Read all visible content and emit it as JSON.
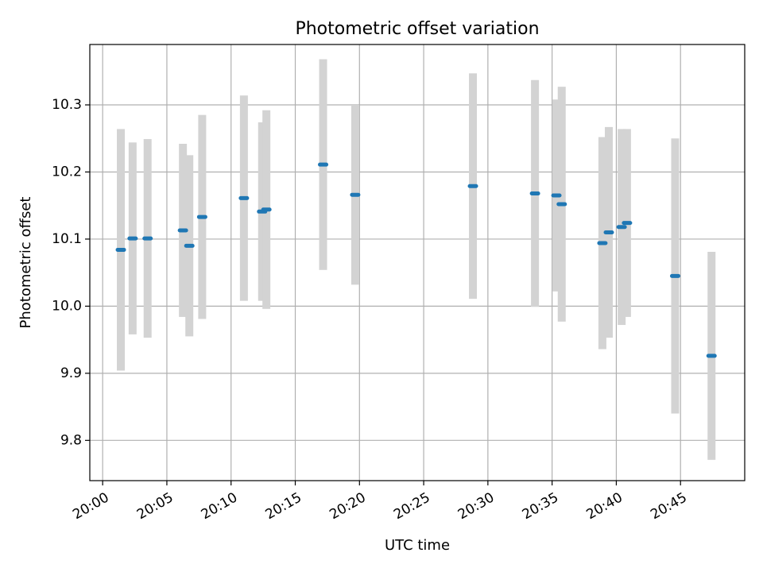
{
  "chart_data": {
    "type": "scatter",
    "title": "Photometric offset variation",
    "xlabel": "UTC time",
    "ylabel": "Photometric offset",
    "x_range_minutes": [
      -1,
      50
    ],
    "ylim": [
      9.74,
      10.39
    ],
    "x_ticks": [
      "20:00",
      "20:05",
      "20:10",
      "20:15",
      "20:20",
      "20:25",
      "20:30",
      "20:35",
      "20:40",
      "20:45"
    ],
    "y_ticks": [
      "9.8",
      "9.9",
      "10.0",
      "10.1",
      "10.2",
      "10.3"
    ],
    "grid": true,
    "colors": {
      "point": "#1f77b4",
      "errorbar": "#d3d3d3",
      "grid": "#b0b0b0"
    },
    "series": [
      {
        "points": [
          {
            "x": "20:01:25",
            "y": 10.084,
            "yerr": 0.18
          },
          {
            "x": "20:02:20",
            "y": 10.101,
            "yerr": 0.143
          },
          {
            "x": "20:03:30",
            "y": 10.101,
            "yerr": 0.148
          },
          {
            "x": "20:06:15",
            "y": 10.113,
            "yerr": 0.129
          },
          {
            "x": "20:06:45",
            "y": 10.09,
            "yerr": 0.135
          },
          {
            "x": "20:07:45",
            "y": 10.133,
            "yerr": 0.152
          },
          {
            "x": "20:11:00",
            "y": 10.161,
            "yerr": 0.153
          },
          {
            "x": "20:12:25",
            "y": 10.141,
            "yerr": 0.133
          },
          {
            "x": "20:12:45",
            "y": 10.144,
            "yerr": 0.148
          },
          {
            "x": "20:17:10",
            "y": 10.211,
            "yerr": 0.157
          },
          {
            "x": "20:19:40",
            "y": 10.166,
            "yerr": 0.134
          },
          {
            "x": "20:28:50",
            "y": 10.179,
            "yerr": 0.168
          },
          {
            "x": "20:33:40",
            "y": 10.168,
            "yerr": 0.169
          },
          {
            "x": "20:35:20",
            "y": 10.165,
            "yerr": 0.143
          },
          {
            "x": "20:35:45",
            "y": 10.152,
            "yerr": 0.175
          },
          {
            "x": "20:38:55",
            "y": 10.094,
            "yerr": 0.158
          },
          {
            "x": "20:39:25",
            "y": 10.11,
            "yerr": 0.157
          },
          {
            "x": "20:40:25",
            "y": 10.118,
            "yerr": 0.146
          },
          {
            "x": "20:40:50",
            "y": 10.124,
            "yerr": 0.14
          },
          {
            "x": "20:44:35",
            "y": 10.045,
            "yerr": 0.205
          },
          {
            "x": "20:47:25",
            "y": 9.926,
            "yerr": 0.155
          }
        ]
      }
    ]
  }
}
